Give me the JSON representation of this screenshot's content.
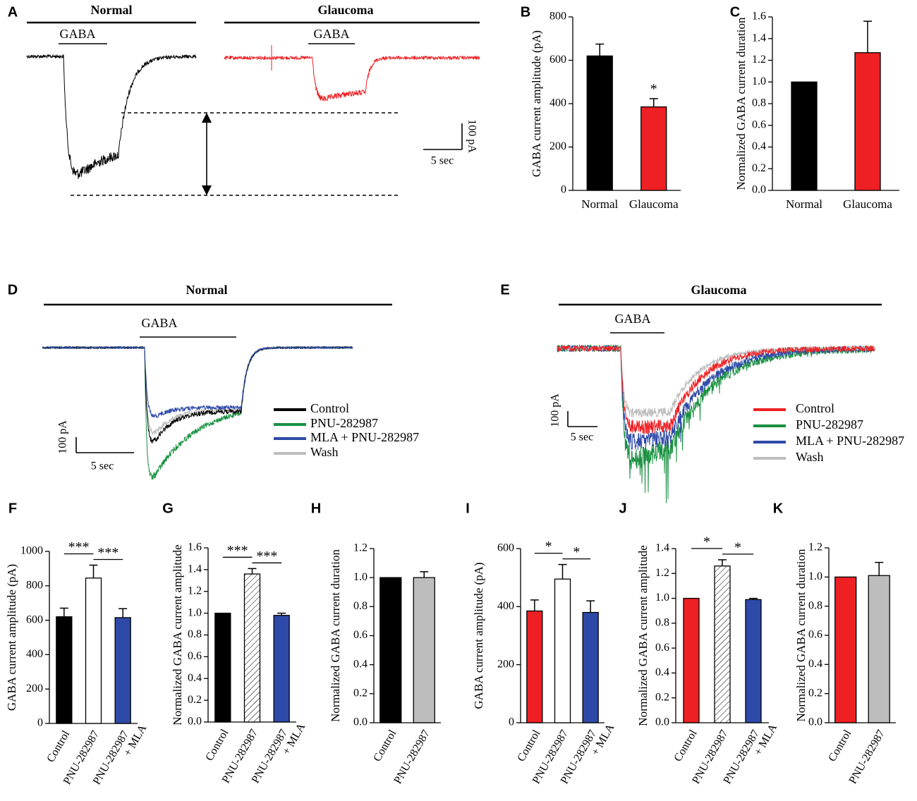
{
  "chart_data": [
    {
      "type": "trace",
      "panel": "A",
      "traces": [
        {
          "title": "Normal",
          "stimulus": "GABA",
          "color": "#000000"
        },
        {
          "title": "Glaucoma",
          "stimulus": "GABA",
          "color": "#ee2024"
        }
      ],
      "scale_x": "5 sec",
      "scale_y": "100 pA"
    },
    {
      "type": "bar",
      "panel": "B",
      "ylabel": "GABA current amplitude (pA)",
      "categories": [
        "Normal",
        "Glaucoma"
      ],
      "values": [
        620,
        385
      ],
      "errors": [
        55,
        38
      ],
      "colors": [
        "#000000",
        "#ee2024"
      ],
      "hatched": [
        false,
        false
      ],
      "ylim": [
        0,
        800
      ],
      "yticks": [
        0,
        200,
        400,
        600,
        800
      ],
      "significance": [
        {
          "label": "*",
          "pair": [
            1,
            1
          ]
        }
      ]
    },
    {
      "type": "bar",
      "panel": "C",
      "ylabel": "Normalized GABA current duration",
      "categories": [
        "Normal",
        "Glaucoma"
      ],
      "values": [
        1.0,
        1.27
      ],
      "errors": [
        0,
        0.29
      ],
      "colors": [
        "#000000",
        "#ee2024"
      ],
      "hatched": [
        false,
        false
      ],
      "ylim": [
        0,
        1.6
      ],
      "yticks": [
        {
          "value": 0,
          "label": "0.0"
        },
        0.2,
        0.4,
        0.6,
        0.8,
        {
          "value": 1,
          "label": "1.0"
        },
        1.2,
        1.4,
        1.6
      ],
      "significance": []
    },
    {
      "type": "trace",
      "panel": "D",
      "title": "Normal",
      "stimulus": "GABA",
      "series": [
        {
          "name": "Control",
          "color": "#000000"
        },
        {
          "name": "PNU-282987",
          "color": "#1a9041"
        },
        {
          "name": "MLA + PNU-282987",
          "color": "#2e4aa8"
        },
        {
          "name": "Wash",
          "color": "#bdbdbd"
        }
      ],
      "scale_x": "5 sec",
      "scale_y": "100 pA"
    },
    {
      "type": "trace",
      "panel": "E",
      "title": "Glaucoma",
      "stimulus": "GABA",
      "series": [
        {
          "name": "Control",
          "color": "#ee2024"
        },
        {
          "name": "PNU-282987",
          "color": "#1a9041"
        },
        {
          "name": "MLA + PNU-282987",
          "color": "#2e4aa8"
        },
        {
          "name": "Wash",
          "color": "#bdbdbd"
        }
      ],
      "scale_x": "5 sec",
      "scale_y": "100 pA"
    },
    {
      "type": "bar",
      "panel": "F",
      "ylabel": "GABA current amplitude (pA)",
      "categories": [
        "Control",
        "PNU-282987",
        "PNU-282987 + MLA"
      ],
      "values": [
        620,
        845,
        615
      ],
      "errors": [
        50,
        75,
        52
      ],
      "colors": [
        "#000000",
        "#ffffff",
        "#2e4aa8"
      ],
      "hatched": [
        false,
        false,
        false
      ],
      "ylim": [
        0,
        1000
      ],
      "yticks": [
        0,
        200,
        400,
        600,
        800,
        1000
      ],
      "significance": [
        {
          "label": "***",
          "pair": [
            0,
            1
          ]
        },
        {
          "label": "***",
          "pair": [
            1,
            2
          ]
        }
      ]
    },
    {
      "type": "bar",
      "panel": "G",
      "ylabel": "Normalized GABA current amplitude",
      "categories": [
        "Control",
        "PNU-282987",
        "PNU-282987 + MLA"
      ],
      "values": [
        1.0,
        1.36,
        0.98
      ],
      "errors": [
        0,
        0.05,
        0.02
      ],
      "colors": [
        "#000000",
        "#ffffff",
        "#2e4aa8"
      ],
      "hatched": [
        false,
        true,
        false
      ],
      "ylim": [
        0,
        1.6
      ],
      "yticks": [
        {
          "value": 0,
          "label": "0.0"
        },
        0.2,
        0.4,
        0.6,
        0.8,
        {
          "value": 1,
          "label": "1.0"
        },
        1.2,
        1.4,
        1.6
      ],
      "significance": [
        {
          "label": "***",
          "pair": [
            0,
            1
          ]
        },
        {
          "label": "***",
          "pair": [
            1,
            2
          ]
        }
      ]
    },
    {
      "type": "bar",
      "panel": "H",
      "ylabel": "Normalized GABA current duration",
      "categories": [
        "Control",
        "PNU-282987"
      ],
      "values": [
        1.0,
        1.0
      ],
      "errors": [
        0,
        0.04
      ],
      "colors": [
        "#000000",
        "#bdbdbd"
      ],
      "hatched": [
        false,
        false
      ],
      "ylim": [
        0,
        1.2
      ],
      "yticks": [
        {
          "value": 0,
          "label": "0.0"
        },
        0.2,
        0.4,
        0.6,
        0.8,
        {
          "value": 1,
          "label": "1.0"
        },
        1.2
      ],
      "significance": []
    },
    {
      "type": "bar",
      "panel": "I",
      "ylabel": "GABA current amplitude (pA)",
      "categories": [
        "Control",
        "PNU-282987",
        "PNU-282987 + MLA"
      ],
      "values": [
        385,
        495,
        380
      ],
      "errors": [
        38,
        50,
        40
      ],
      "colors": [
        "#ee2024",
        "#ffffff",
        "#2e4aa8"
      ],
      "hatched": [
        false,
        false,
        false
      ],
      "ylim": [
        0,
        600
      ],
      "yticks": [
        0,
        200,
        400,
        600
      ],
      "significance": [
        {
          "label": "*",
          "pair": [
            0,
            1
          ]
        },
        {
          "label": "*",
          "pair": [
            1,
            2
          ]
        }
      ]
    },
    {
      "type": "bar",
      "panel": "J",
      "ylabel": "Normalized GABA current amplitude",
      "categories": [
        "Control",
        "PNU-282987",
        "PNU-282987 + MLA"
      ],
      "values": [
        1.0,
        1.26,
        0.99
      ],
      "errors": [
        0,
        0.05,
        0.01
      ],
      "colors": [
        "#ee2024",
        "#ffffff",
        "#2e4aa8"
      ],
      "hatched": [
        false,
        true,
        false
      ],
      "ylim": [
        0,
        1.4
      ],
      "yticks": [
        {
          "value": 0,
          "label": "0.0"
        },
        0.2,
        0.4,
        0.6,
        0.8,
        {
          "value": 1,
          "label": "1.0"
        },
        1.2,
        1.4
      ],
      "significance": [
        {
          "label": "*",
          "pair": [
            0,
            1
          ]
        },
        {
          "label": "*",
          "pair": [
            1,
            2
          ]
        }
      ]
    },
    {
      "type": "bar",
      "panel": "K",
      "ylabel": "Normalized GABA current duration",
      "categories": [
        "Control",
        "PNU-282987"
      ],
      "values": [
        1.0,
        1.01
      ],
      "errors": [
        0,
        0.09
      ],
      "colors": [
        "#ee2024",
        "#bdbdbd"
      ],
      "hatched": [
        false,
        false
      ],
      "ylim": [
        0,
        1.2
      ],
      "yticks": [
        {
          "value": 0,
          "label": "0.0"
        },
        0.2,
        0.4,
        0.6,
        0.8,
        {
          "value": 1,
          "label": "1.0"
        },
        1.2
      ],
      "significance": []
    }
  ]
}
